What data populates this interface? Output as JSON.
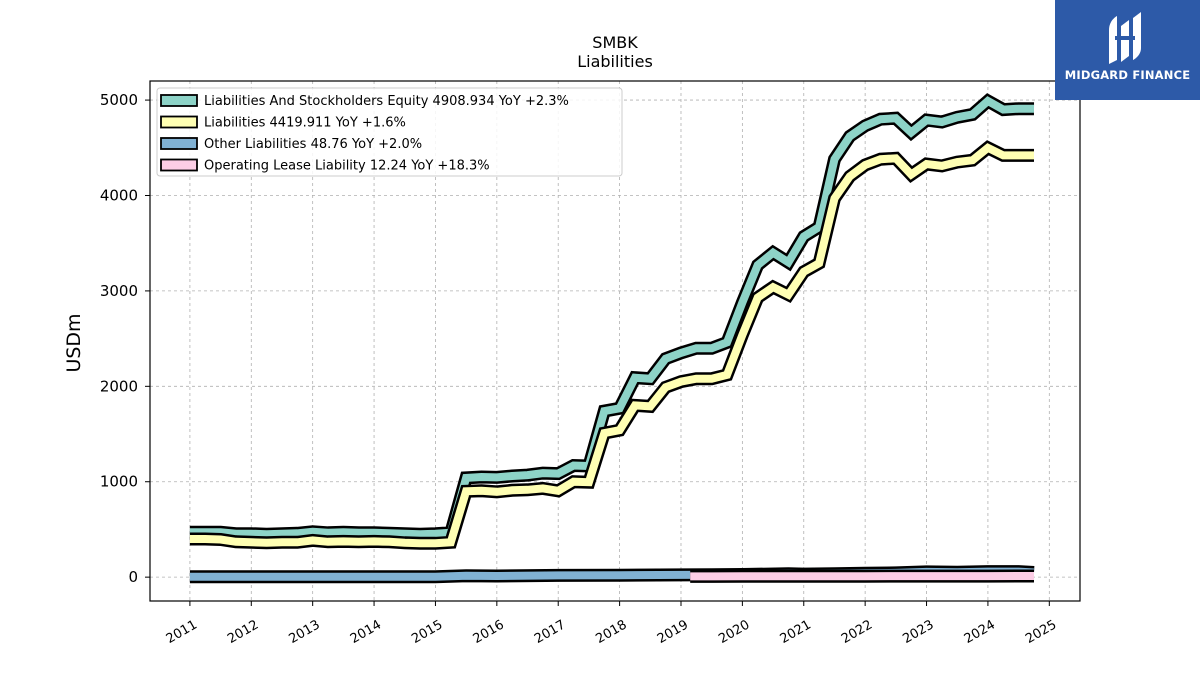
{
  "brand": {
    "name": "MIDGARD FINANCE",
    "color": "#2d5aa8"
  },
  "chart_data": {
    "type": "area",
    "title": "SMBK",
    "subtitle": "Liabilities",
    "ylabel": "USDm",
    "xlabel": "",
    "ylim": [
      -250,
      5200
    ],
    "xlim": [
      2010.35,
      2025.5
    ],
    "yticks": [
      0,
      1000,
      2000,
      3000,
      4000,
      5000
    ],
    "xticks": [
      "2011",
      "2012",
      "2013",
      "2014",
      "2015",
      "2016",
      "2017",
      "2018",
      "2019",
      "2020",
      "2021",
      "2022",
      "2023",
      "2024",
      "2025"
    ],
    "grid": true,
    "legend_position": "top-left",
    "series": [
      {
        "name": "Liabilities And Stockholders Equity",
        "legend_label": "Liabilities And Stockholders Equity  4908.934 YoY +2.3%",
        "color": "#8dd3c7",
        "x": [
          2011.0,
          2011.25,
          2011.5,
          2011.75,
          2012.0,
          2012.25,
          2012.5,
          2012.75,
          2013.0,
          2013.25,
          2013.5,
          2013.75,
          2014.0,
          2014.25,
          2014.5,
          2014.75,
          2015.0,
          2015.25,
          2015.5,
          2015.75,
          2016.0,
          2016.25,
          2016.5,
          2016.75,
          2017.0,
          2017.25,
          2017.5,
          2017.75,
          2018.0,
          2018.25,
          2018.5,
          2018.75,
          2019.0,
          2019.25,
          2019.5,
          2019.75,
          2020.0,
          2020.25,
          2020.5,
          2020.75,
          2021.0,
          2021.25,
          2021.5,
          2021.75,
          2022.0,
          2022.25,
          2022.5,
          2022.75,
          2023.0,
          2023.25,
          2023.5,
          2023.75,
          2024.0,
          2024.25,
          2024.5,
          2024.75
        ],
        "values": [
          470,
          470,
          470,
          455,
          455,
          450,
          455,
          460,
          475,
          465,
          470,
          465,
          465,
          460,
          455,
          450,
          455,
          465,
          1040,
          1050,
          1045,
          1060,
          1070,
          1090,
          1085,
          1170,
          1165,
          1740,
          1770,
          2090,
          2080,
          2290,
          2350,
          2400,
          2400,
          2460,
          2880,
          3270,
          3400,
          3300,
          3570,
          3670,
          4380,
          4620,
          4730,
          4800,
          4810,
          4660,
          4790,
          4770,
          4820,
          4850,
          4990,
          4900,
          4910,
          4909
        ]
      },
      {
        "name": "Liabilities",
        "legend_label": "Liabilities  4419.911 YoY +1.6%",
        "color": "#ffffb3",
        "x": [
          2011.0,
          2011.25,
          2011.5,
          2011.75,
          2012.0,
          2012.25,
          2012.5,
          2012.75,
          2013.0,
          2013.25,
          2013.5,
          2013.75,
          2014.0,
          2014.25,
          2014.5,
          2014.75,
          2015.0,
          2015.25,
          2015.5,
          2015.75,
          2016.0,
          2016.25,
          2016.5,
          2016.75,
          2017.0,
          2017.25,
          2017.5,
          2017.75,
          2018.0,
          2018.25,
          2018.5,
          2018.75,
          2019.0,
          2019.25,
          2019.5,
          2019.75,
          2020.0,
          2020.25,
          2020.5,
          2020.75,
          2021.0,
          2021.25,
          2021.5,
          2021.75,
          2022.0,
          2022.25,
          2022.5,
          2022.75,
          2023.0,
          2023.25,
          2023.5,
          2023.75,
          2024.0,
          2024.25,
          2024.5,
          2024.75
        ],
        "values": [
          400,
          400,
          395,
          370,
          365,
          360,
          365,
          365,
          385,
          370,
          375,
          370,
          375,
          370,
          360,
          355,
          355,
          365,
          900,
          905,
          895,
          910,
          915,
          930,
          905,
          1000,
          995,
          1510,
          1540,
          1800,
          1790,
          1990,
          2050,
          2080,
          2080,
          2120,
          2540,
          2930,
          3040,
          2960,
          3200,
          3290,
          3970,
          4200,
          4320,
          4380,
          4390,
          4220,
          4330,
          4310,
          4350,
          4370,
          4500,
          4420,
          4420,
          4420
        ]
      },
      {
        "name": "Other Liabilities",
        "legend_label": "Other Liabilities  48.76 YoY +2.0%",
        "color": "#80b1d3",
        "x": [
          2011.0,
          2012.0,
          2013.0,
          2014.0,
          2015.0,
          2015.5,
          2016.0,
          2017.0,
          2018.0,
          2019.0,
          2019.5,
          2020.0,
          2020.75,
          2021.0,
          2021.5,
          2022.0,
          2022.5,
          2023.0,
          2023.5,
          2024.0,
          2024.5,
          2024.75
        ],
        "values": [
          5,
          5,
          5,
          5,
          5,
          15,
          12,
          18,
          20,
          24,
          25,
          28,
          35,
          32,
          35,
          40,
          45,
          55,
          52,
          58,
          58,
          49
        ]
      },
      {
        "name": "Operating Lease Liability",
        "legend_label": "Operating Lease Liability  12.24 YoY +18.3%",
        "color": "#fccde5",
        "x": [
          2019.15,
          2019.5,
          2020.0,
          2020.5,
          2021.0,
          2021.5,
          2022.0,
          2022.5,
          2023.0,
          2023.5,
          2024.0,
          2024.5,
          2024.75
        ],
        "values": [
          8,
          8,
          9,
          9,
          9,
          10,
          10,
          11,
          11,
          11,
          11,
          12,
          12.24
        ]
      }
    ]
  }
}
